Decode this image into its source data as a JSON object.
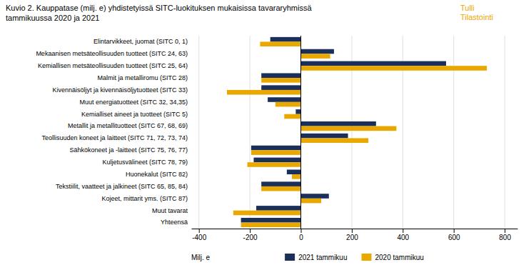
{
  "chart_data": {
    "type": "bar",
    "orientation": "horizontal",
    "title": "Kuvio  2. Kauppatase (milj. e) yhdistetyissä SITC-luokituksen mukaisissa tavararyhmissä",
    "subtitle": "tammikuussa 2020 ja 2021",
    "annotations": [
      "Tulli",
      "Tilastointi"
    ],
    "xlabel": "Milj. e",
    "categories": [
      "Elintarvikkeet, juomat (SITC 0, 1)",
      "Mekaanisen metsäteollisuuden tuotteet (SITC 24, 63)",
      "Kemiallisen metsäteollisuuden tuotteet (SITC 25, 64)",
      "Malmit ja metalliromu (SITC 28)",
      "Kivennäisöljyt ja kivennäisöljytuotteet (SITC 33)",
      "Muut energiatuotteet (SITC 32, 34,35)",
      "Kemialliset aineet ja tuotteet (SITC 5)",
      "Metallit ja metallituotteet (SITC 67, 68, 69)",
      "Teollisuuden koneet ja laitteet (SITC 71, 72, 73, 74)",
      "Sähkökoneet ja -laitteet (SITC 75, 76, 77)",
      "Kuljetusvälineet (SITC 78, 79)",
      "Huonekalut (SITC 82)",
      "Tekstiilit, vaatteet ja jalkineet (SITC 65, 85, 84)",
      "Kojeet, mittarit yms. (SITC 87)",
      "Muut tavarat",
      "Yhteensä"
    ],
    "series": [
      {
        "name": "2021 tammikuu",
        "color": "#1a2f5a",
        "values": [
          -120,
          130,
          570,
          -155,
          -155,
          -130,
          -20,
          295,
          185,
          -195,
          -185,
          -55,
          -155,
          110,
          -175,
          -235
        ]
      },
      {
        "name": "2020 tammikuu",
        "color": "#e8a800",
        "values": [
          -160,
          115,
          730,
          -155,
          -290,
          -100,
          -65,
          375,
          265,
          -195,
          -210,
          -35,
          -155,
          80,
          -265,
          -235
        ]
      }
    ],
    "xlim": [
      -430,
      850
    ],
    "xticks": [
      -400,
      -200,
      0,
      200,
      400,
      600,
      800
    ],
    "grid": true,
    "legend": "bottom"
  }
}
